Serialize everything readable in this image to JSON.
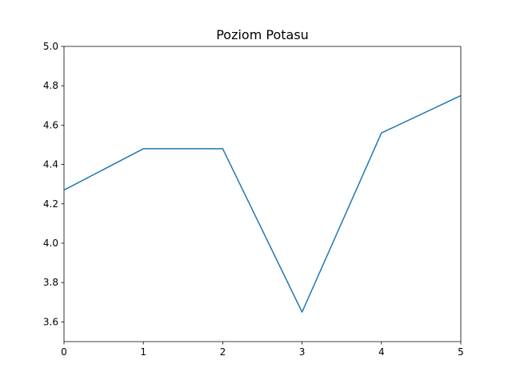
{
  "chart_data": {
    "type": "line",
    "title": "Poziom Potasu",
    "xlabel": "",
    "ylabel": "",
    "x": [
      0,
      1,
      2,
      3,
      4,
      5
    ],
    "xlim": [
      0,
      5
    ],
    "ylim": [
      3.5,
      5.0
    ],
    "x_ticks": [
      "0",
      "1",
      "2",
      "3",
      "4",
      "5"
    ],
    "y_ticks": [
      "3.6",
      "3.8",
      "4.0",
      "4.2",
      "4.4",
      "4.6",
      "4.8",
      "5.0"
    ],
    "series": [
      {
        "values": [
          4.27,
          4.48,
          4.48,
          3.65,
          4.56,
          4.75
        ],
        "color": "#1f77b4"
      }
    ],
    "grid": false,
    "legend": "none"
  }
}
